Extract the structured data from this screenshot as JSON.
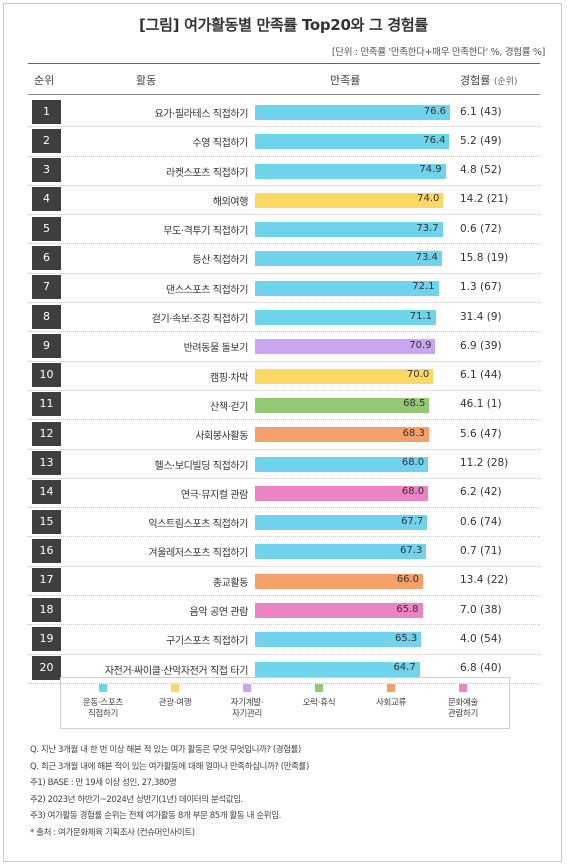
{
  "title": "[그림] 여가활동별 만족률 Top20와 그 경험률",
  "unit_note": "[단위 : 만족률 '만족한다+매우 만족한다' %, 경험률 %]",
  "headers": {
    "rank": "순위",
    "activity": "활동",
    "satisfaction": "만족률",
    "experience": "경험률",
    "experience_sub": "(순위)"
  },
  "colors": {
    "sports": "#6fd3ec",
    "tourism": "#fbd866",
    "self": "#c9a6f0",
    "leisure": "#94c973",
    "social": "#f3a06a",
    "culture": "#ea84c2"
  },
  "chart_data": {
    "type": "bar",
    "xlim": [
      0,
      76.6
    ],
    "categories": [
      "요가·필라테스 직접하기",
      "수영 직접하기",
      "라켓스포츠 직접하기",
      "해외여행",
      "무도·격투기 직접하기",
      "등산 직접하기",
      "댄스스포츠 직접하기",
      "걷기·속보·조깅 직접하기",
      "반려동물 돌보기",
      "캠핑·차박",
      "산책·걷기",
      "사회봉사활동",
      "헬스·보디빌딩 직접하기",
      "연극·뮤지컬 관람",
      "익스트림스포츠 직접하기",
      "겨울레저스포츠 직접하기",
      "종교활동",
      "음악 공연 관람",
      "구기스포츠 직접하기",
      "자전거·싸이클·산악자전거 직접 타기"
    ],
    "ranks": [
      "1",
      "2",
      "3",
      "4",
      "5",
      "6",
      "7",
      "8",
      "9",
      "10",
      "11",
      "12",
      "13",
      "14",
      "15",
      "16",
      "17",
      "18",
      "19",
      "20"
    ],
    "values": [
      76.6,
      76.4,
      74.9,
      74.0,
      73.7,
      73.4,
      72.1,
      71.1,
      70.9,
      70.0,
      68.5,
      68.3,
      68.0,
      68.0,
      67.7,
      67.3,
      66.0,
      65.8,
      65.3,
      64.7
    ],
    "value_labels": [
      "76.6",
      "76.4",
      "74.9",
      "74.0",
      "73.7",
      "73.4",
      "72.1",
      "71.1",
      "70.9",
      "70.0",
      "68.5",
      "68.3",
      "68.0",
      "68.0",
      "67.7",
      "67.3",
      "66.0",
      "65.8",
      "65.3",
      "64.7"
    ],
    "groups": [
      "sports",
      "sports",
      "sports",
      "tourism",
      "sports",
      "sports",
      "sports",
      "sports",
      "self",
      "tourism",
      "leisure",
      "social",
      "sports",
      "culture",
      "sports",
      "sports",
      "social",
      "culture",
      "sports",
      "sports"
    ],
    "experience": [
      "6.1 (43)",
      "5.2 (49)",
      "4.8 (52)",
      "14.2 (21)",
      "0.6 (72)",
      "15.8 (19)",
      "1.3 (67)",
      "31.4 (9)",
      "6.9 (39)",
      "6.1 (44)",
      "46.1 (1)",
      "5.6 (47)",
      "11.2 (28)",
      "6.2 (42)",
      "0.6 (74)",
      "0.7 (71)",
      "13.4 (22)",
      "7.0 (38)",
      "4.0 (54)",
      "6.8 (40)"
    ]
  },
  "legend": [
    {
      "key": "sports",
      "label": "운동·스포츠\n직접하기"
    },
    {
      "key": "tourism",
      "label": "관광·여행"
    },
    {
      "key": "self",
      "label": "자기계발·\n자기관리"
    },
    {
      "key": "leisure",
      "label": "오락·휴식"
    },
    {
      "key": "social",
      "label": "사회교류"
    },
    {
      "key": "culture",
      "label": "문화예술\n관람하기"
    }
  ],
  "notes": [
    "Q. 지난 3개월 내 한 번 이상 해본 적 있는 여가 활동은 무엇 무엇입니까? (경험률)",
    "Q. 최근 3개월 내에 해본 적이 있는 여가활동에 대해 얼마나 만족하십니까? (만족률)",
    "주1) BASE : 만 19세 이상 성인, 27,380명",
    "주2) 2023년 하반기~2024년 상반기(1년) 데이터의 분석값임.",
    "주3) 여가활동 경험률 순위는 전체 여가활동 8개 부문 85개 활동 내 순위임.",
    "* 출처 : 여가문화체육 기획조사 (컨슈머인사이트)"
  ]
}
